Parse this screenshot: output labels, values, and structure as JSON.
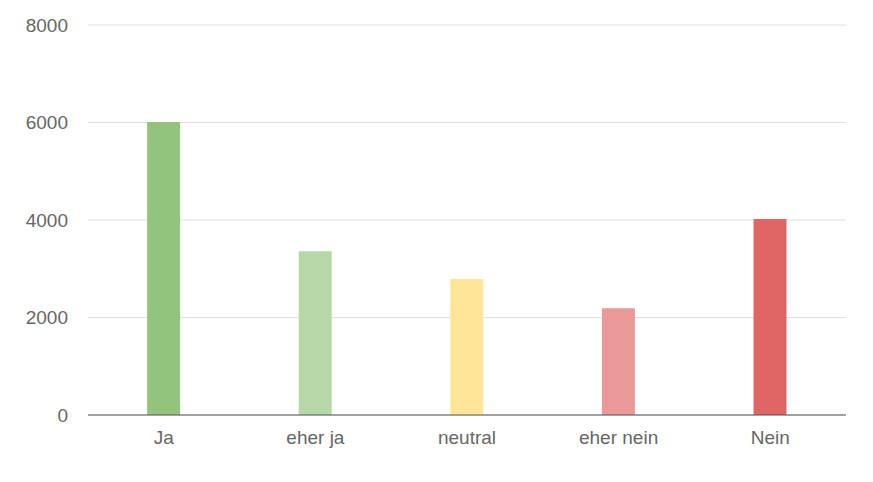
{
  "chart_data": {
    "type": "bar",
    "categories": [
      "Ja",
      "eher ja",
      "neutral",
      "eher nein",
      "Nein"
    ],
    "values": [
      6010,
      3360,
      2790,
      2190,
      4020
    ],
    "colors": [
      "#93c47d",
      "#b6d7a8",
      "#ffe599",
      "#ea9999",
      "#e06666"
    ],
    "ylim": [
      0,
      8000
    ],
    "yticks": [
      0,
      2000,
      4000,
      6000,
      8000
    ],
    "grid": true
  }
}
